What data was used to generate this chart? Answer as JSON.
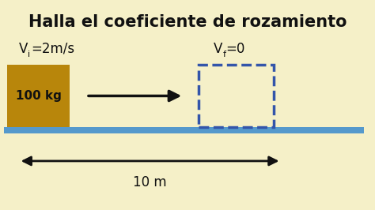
{
  "bg_color": "#F5F0C8",
  "title": "Halla el coeficiente de rozamiento",
  "title_fontsize": 15,
  "vi_text": "V",
  "vi_sub": "i",
  "vi_val": "=2m/s",
  "vf_text": "V",
  "vf_sub": "f",
  "vf_val": "=0",
  "mass_label": "100 kg",
  "dist_label": "10 m",
  "solid_box_color": "#B8860B",
  "dashed_box_color": "#3355AA",
  "floor_color": "#5599CC",
  "arrow_color": "#111111",
  "text_color": "#111111"
}
